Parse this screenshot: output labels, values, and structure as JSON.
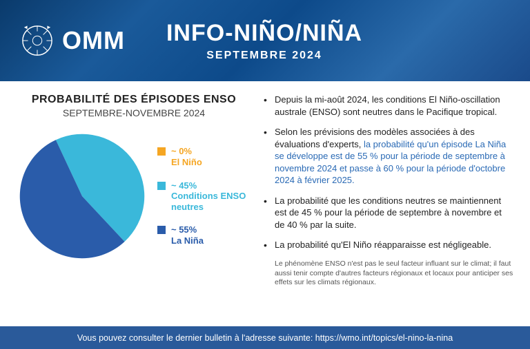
{
  "header": {
    "org": "OMM",
    "title": "INFO-NIÑO/NIÑA",
    "subtitle": "SEPTEMBRE 2024"
  },
  "probability": {
    "title": "PROBABILITÉ DES ÉPISODES ENSO",
    "subtitle": "SEPTEMBRE-NOVEMBRE 2024",
    "chart": {
      "type": "pie",
      "slices": [
        {
          "name": "el-nino",
          "value": 0,
          "color": "#f5a623"
        },
        {
          "name": "neutral",
          "value": 45,
          "color": "#3ab8da"
        },
        {
          "name": "la-nina",
          "value": 55,
          "color": "#2a5caa"
        }
      ],
      "rotation_deg": -25
    },
    "legend": [
      {
        "swatch": "#f5a623",
        "value": "~ 0%",
        "label": "El Niño",
        "text_color": "#f5a623"
      },
      {
        "swatch": "#3ab8da",
        "value": "~ 45%",
        "label": "Conditions ENSO neutres",
        "text_color": "#3ab8da"
      },
      {
        "swatch": "#2a5caa",
        "value": "~ 55%",
        "label": "La Niña",
        "text_color": "#2a5caa"
      }
    ]
  },
  "bullets": [
    {
      "pre": "Depuis la mi-août 2024, les conditions El Niño-oscillation australe (ENSO) sont neutres dans le Pacifique tropical.",
      "highlight": ""
    },
    {
      "pre": "Selon les prévisions des modèles associées à des évaluations d'experts, ",
      "highlight": "la probabilité qu'un épisode La Niña se développe est de 55 % pour la période de septembre à novembre 2024 et passe à 60 % pour la période d'octobre 2024 à février 2025."
    },
    {
      "pre": "La probabilité que les conditions neutres se maintiennent est de 45 % pour la période de septembre à novembre et de 40 % par la suite.",
      "highlight": ""
    },
    {
      "pre": "La probabilité qu'El Niño réapparaisse est négligeable.",
      "highlight": ""
    }
  ],
  "note": "Le phénomène ENSO n'est pas le seul facteur influant sur le climat; il faut aussi tenir compte d'autres facteurs régionaux et locaux pour anticiper ses effets sur les climats régionaux.",
  "footer": "Vous pouvez consulter le dernier bulletin à l'adresse suivante: https://wmo.int/topics/el-nino-la-nina",
  "colors": {
    "header_bg": "#1a4a8a",
    "footer_bg": "#2a5a9a",
    "highlight": "#2a6ab5"
  }
}
